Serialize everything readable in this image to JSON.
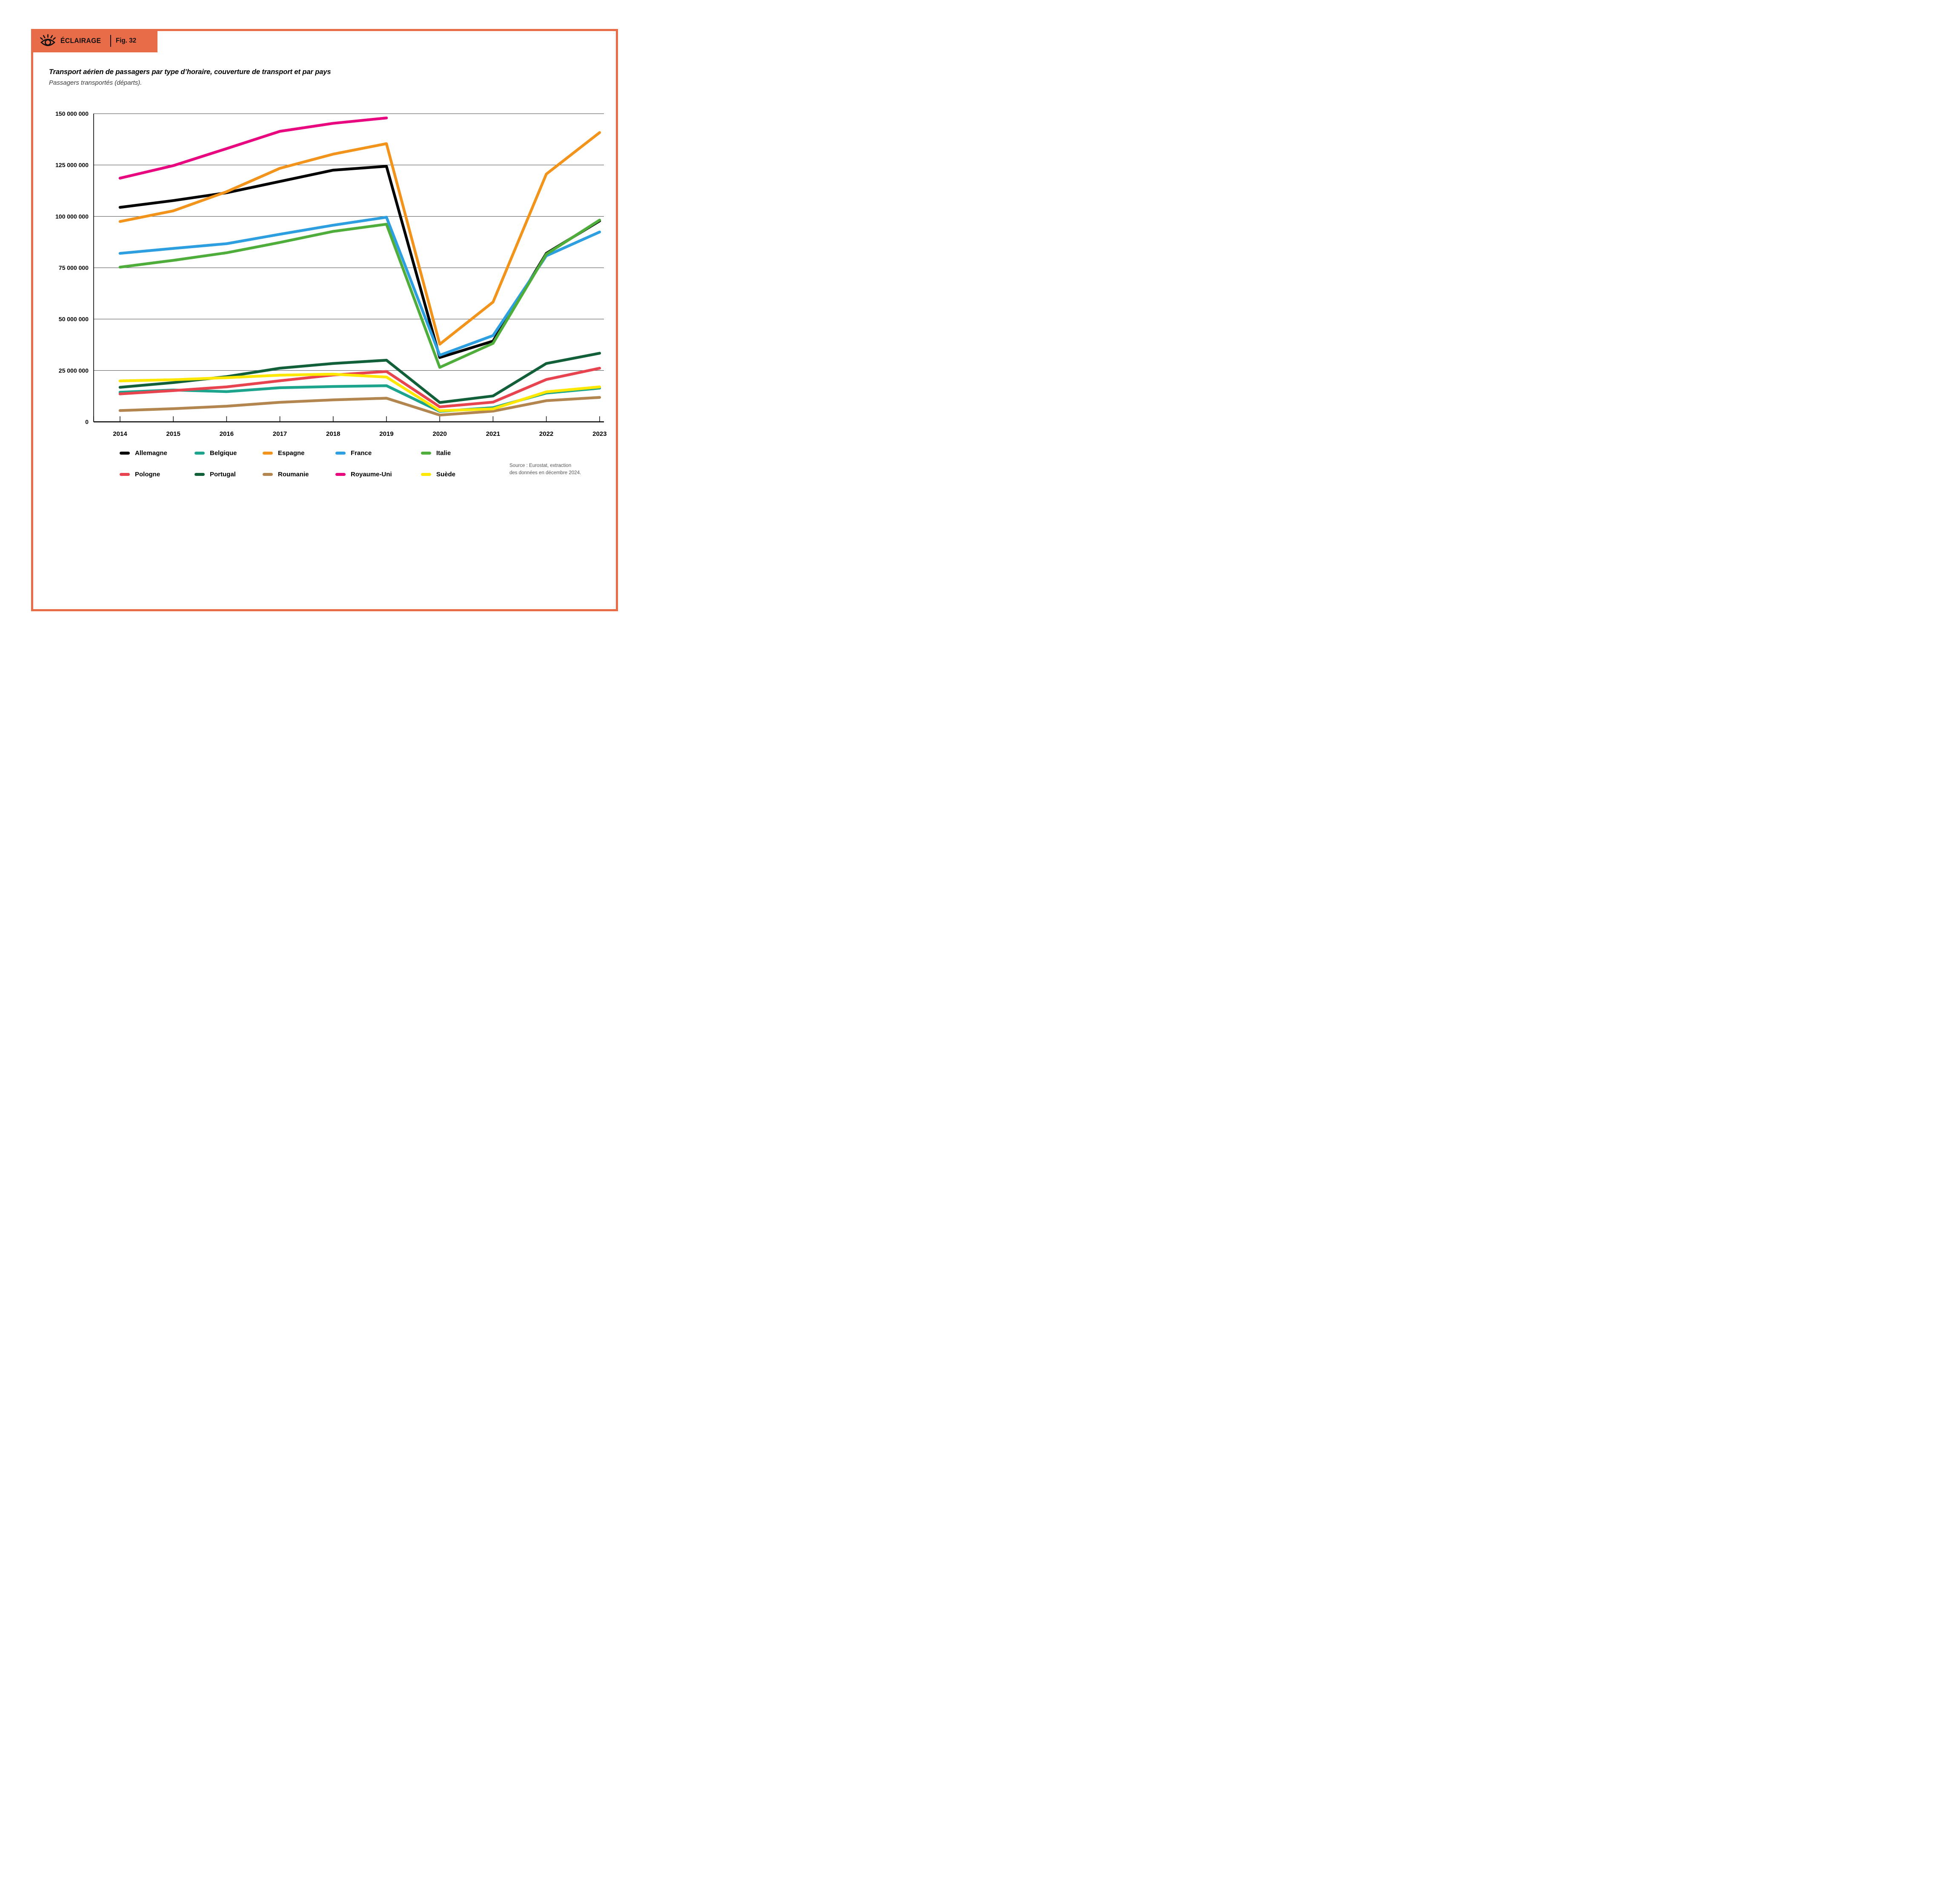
{
  "page": {
    "accent_color": "#E96C49",
    "background": "#ffffff"
  },
  "header_badge": {
    "icon": "eye-icon",
    "label": "ÉCLAIRAGE",
    "fig_label": "Fig. 32"
  },
  "title_block": {
    "title": "Transport aérien de passagers par type d’horaire, couverture de transport et par pays",
    "subtitle": "Passagers transportés (départs)."
  },
  "source_note": {
    "line1": "Source : Eurostat, extraction",
    "line2": "des données en décembre 2024."
  },
  "chart_data": {
    "type": "line",
    "unit": "passengers",
    "categories": [
      "2014",
      "2015",
      "2016",
      "2017",
      "2018",
      "2019",
      "2020",
      "2021",
      "2022",
      "2023"
    ],
    "y_tick_labels": [
      "0",
      "25 000 000",
      "50 000 000",
      "75 000 000",
      "100 000 000",
      "125 000 000",
      "150 000 000"
    ],
    "ylim": [
      0,
      150000000
    ],
    "y_tick_step": 25000000,
    "grid": "horizontal",
    "legend_position": "bottom",
    "series": [
      {
        "name": "Allemagne",
        "color": "#000000",
        "values": [
          104400000,
          107700000,
          111500000,
          117000000,
          122500000,
          124400000,
          31300000,
          39300000,
          82000000,
          97800000
        ]
      },
      {
        "name": "Belgique",
        "color": "#1CA48C",
        "values": [
          14400000,
          15500000,
          14700000,
          16600000,
          17200000,
          17600000,
          5100000,
          6900000,
          14000000,
          16400000
        ]
      },
      {
        "name": "Espagne",
        "color": "#F2941B",
        "values": [
          97500000,
          102700000,
          112000000,
          123400000,
          130300000,
          135400000,
          37800000,
          58300000,
          120600000,
          140800000
        ]
      },
      {
        "name": "France",
        "color": "#2D9FE0",
        "values": [
          82000000,
          84400000,
          86700000,
          91300000,
          95700000,
          99600000,
          32400000,
          42000000,
          80800000,
          92400000
        ]
      },
      {
        "name": "Italie",
        "color": "#4FAE3B",
        "values": [
          75300000,
          78600000,
          82300000,
          87300000,
          92700000,
          96200000,
          26500000,
          38200000,
          81600000,
          98200000
        ]
      },
      {
        "name": "Pologne",
        "color": "#E84450",
        "values": [
          13600000,
          15200000,
          17000000,
          20000000,
          22800000,
          24500000,
          7300000,
          9600000,
          20600000,
          26100000
        ]
      },
      {
        "name": "Portugal",
        "color": "#12603A",
        "values": [
          16800000,
          19100000,
          22000000,
          26100000,
          28400000,
          30000000,
          9400000,
          12600000,
          28400000,
          33400000
        ]
      },
      {
        "name": "Roumanie",
        "color": "#B3854F",
        "values": [
          5500000,
          6400000,
          7600000,
          9500000,
          10700000,
          11500000,
          3300000,
          5200000,
          10300000,
          11900000
        ]
      },
      {
        "name": "Royaume-Uni",
        "color": "#E8077F",
        "values": [
          118600000,
          124700000,
          133000000,
          141400000,
          145300000,
          147900000,
          null,
          null,
          null,
          null
        ]
      },
      {
        "name": "Suède",
        "color": "#FFE800",
        "values": [
          19900000,
          20500000,
          21500000,
          22700000,
          23200000,
          21800000,
          5400000,
          6300000,
          14600000,
          17000000
        ]
      }
    ]
  }
}
